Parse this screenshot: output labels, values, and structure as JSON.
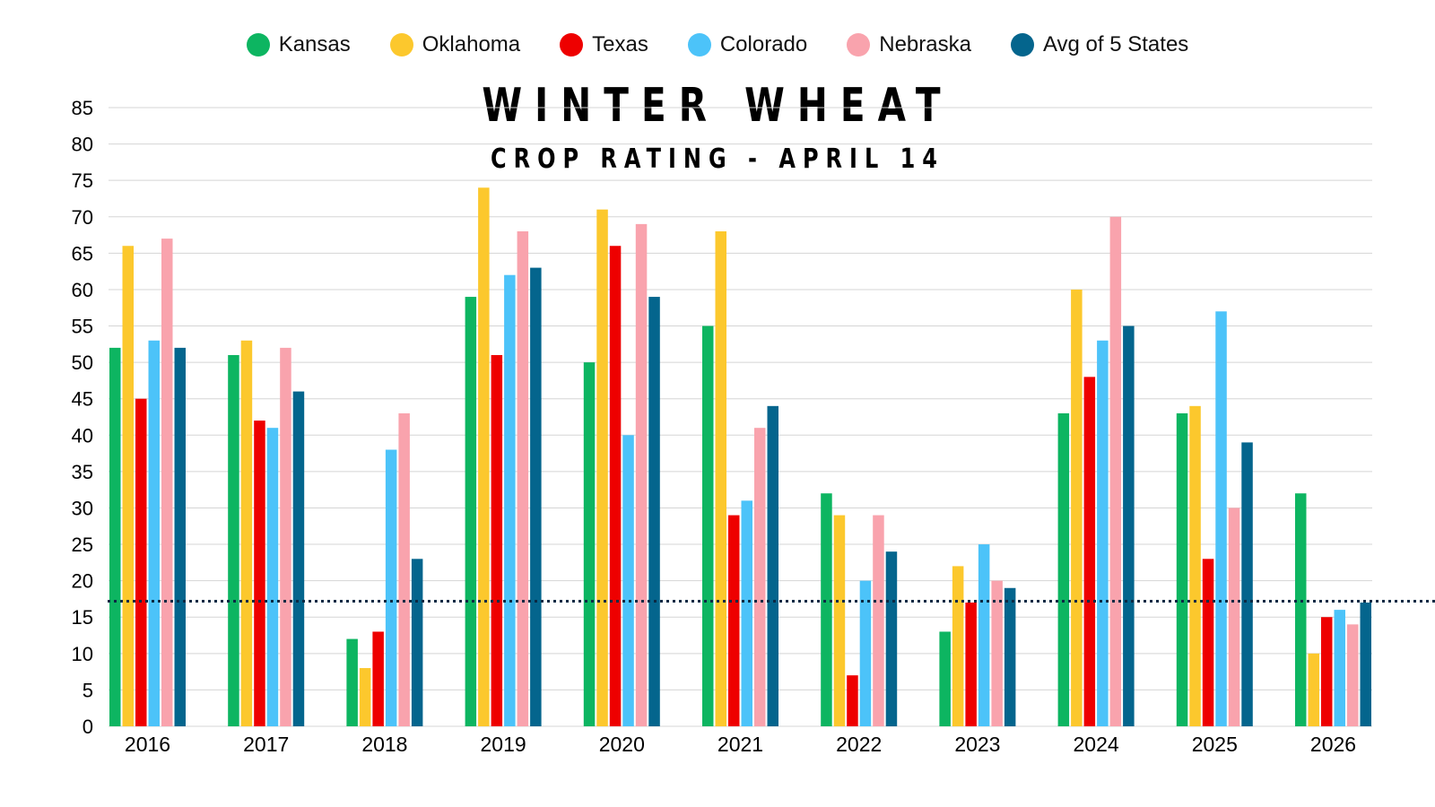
{
  "chart_data": {
    "type": "bar",
    "title": "WINTER WHEAT",
    "subtitle": "CROP RATING - APRIL 14",
    "categories": [
      "2016",
      "2017",
      "2018",
      "2019",
      "2020",
      "2021",
      "2022",
      "2023",
      "2024",
      "2025",
      "2026"
    ],
    "series": [
      {
        "name": "Kansas",
        "color": "#0db561",
        "values": [
          52,
          51,
          12,
          59,
          50,
          55,
          32,
          13,
          43,
          43,
          32
        ]
      },
      {
        "name": "Oklahoma",
        "color": "#fcc82d",
        "values": [
          66,
          53,
          8,
          74,
          71,
          68,
          29,
          22,
          60,
          44,
          10
        ]
      },
      {
        "name": "Texas",
        "color": "#ee0000",
        "values": [
          45,
          42,
          13,
          51,
          66,
          29,
          7,
          17,
          48,
          23,
          15
        ]
      },
      {
        "name": "Colorado",
        "color": "#4cc3f9",
        "values": [
          53,
          41,
          38,
          62,
          40,
          31,
          20,
          25,
          53,
          57,
          16
        ]
      },
      {
        "name": "Nebraska",
        "color": "#f9a3ad",
        "values": [
          67,
          52,
          43,
          68,
          69,
          41,
          29,
          20,
          70,
          30,
          14
        ]
      },
      {
        "name": "Avg of 5 States",
        "color": "#04658d",
        "values": [
          52,
          46,
          23,
          63,
          59,
          44,
          24,
          19,
          55,
          39,
          17
        ]
      }
    ],
    "reference_line": {
      "value": 17,
      "style": "dotted",
      "color": "#0b2a44"
    },
    "ylim": [
      0,
      85
    ],
    "yticks": [
      0,
      5,
      10,
      15,
      20,
      25,
      30,
      35,
      40,
      45,
      50,
      55,
      60,
      65,
      70,
      75,
      80,
      85
    ],
    "grid": true,
    "legend_position": "top-center",
    "xlabel": "",
    "ylabel": ""
  }
}
